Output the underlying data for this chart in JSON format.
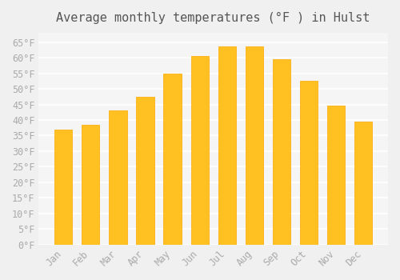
{
  "title": "Average monthly temperatures (°F ) in Hulst",
  "months": [
    "Jan",
    "Feb",
    "Mar",
    "Apr",
    "May",
    "Jun",
    "Jul",
    "Aug",
    "Sep",
    "Oct",
    "Nov",
    "Dec"
  ],
  "values": [
    37,
    38.5,
    43,
    47.5,
    55,
    60.5,
    63.5,
    63.5,
    59.5,
    52.5,
    44.5,
    39.5
  ],
  "bar_color_face": "#FFC022",
  "bar_color_edge": "#FFA500",
  "background_color": "#f0f0f0",
  "plot_bg_color": "#f5f5f5",
  "grid_color": "#ffffff",
  "ylim": [
    0,
    68
  ],
  "yticks": [
    0,
    5,
    10,
    15,
    20,
    25,
    30,
    35,
    40,
    45,
    50,
    55,
    60,
    65
  ],
  "ytick_labels": [
    "0°F",
    "5°F",
    "10°F",
    "15°F",
    "20°F",
    "25°F",
    "30°F",
    "35°F",
    "40°F",
    "45°F",
    "50°F",
    "55°F",
    "60°F",
    "65°F"
  ],
  "title_fontsize": 11,
  "tick_fontsize": 8.5,
  "tick_color": "#aaaaaa",
  "font_family": "monospace"
}
